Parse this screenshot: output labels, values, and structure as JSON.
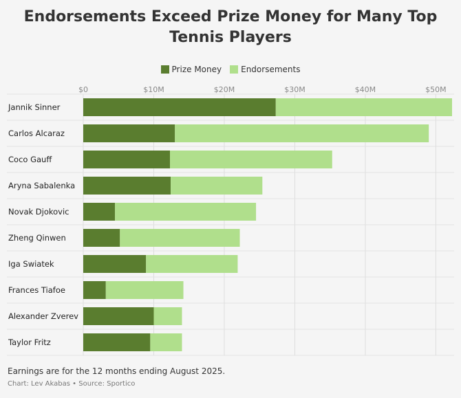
{
  "chart_data": {
    "type": "bar",
    "orientation": "horizontal",
    "stacked": true,
    "title": "Endorsements Exceed Prize Money for Many Top Tennis Players",
    "categories": [
      "Jannik Sinner",
      "Carlos Alcaraz",
      "Coco Gauff",
      "Aryna Sabalenka",
      "Novak Djokovic",
      "Zheng Qinwen",
      "Iga Swiatek",
      "Frances Tiafoe",
      "Alexander Zverev",
      "Taylor Fritz"
    ],
    "series": [
      {
        "name": "Prize Money",
        "color": "#5a7d2f",
        "values": [
          27.3,
          13.0,
          12.3,
          12.4,
          4.5,
          5.2,
          8.9,
          3.2,
          10.0,
          9.5
        ]
      },
      {
        "name": "Endorsements",
        "color": "#b0df8c",
        "values": [
          25.0,
          36.0,
          23.0,
          13.0,
          20.0,
          17.0,
          13.0,
          11.0,
          4.0,
          4.5
        ]
      }
    ],
    "ticks": [
      "$0",
      "$10M",
      "$20M",
      "$30M",
      "$40M",
      "$50M"
    ],
    "tick_values": [
      0,
      10,
      20,
      30,
      40,
      50
    ],
    "xlim": [
      0,
      52.3
    ],
    "xlabel": "",
    "ylabel": "",
    "legend_position": "top-center",
    "grid": true
  },
  "footer": {
    "note": "Earnings are for the 12 months ending August 2025.",
    "credit_chart": "Chart: Lev Akabas",
    "credit_separator": "•",
    "credit_source": "Source: Sportico"
  }
}
